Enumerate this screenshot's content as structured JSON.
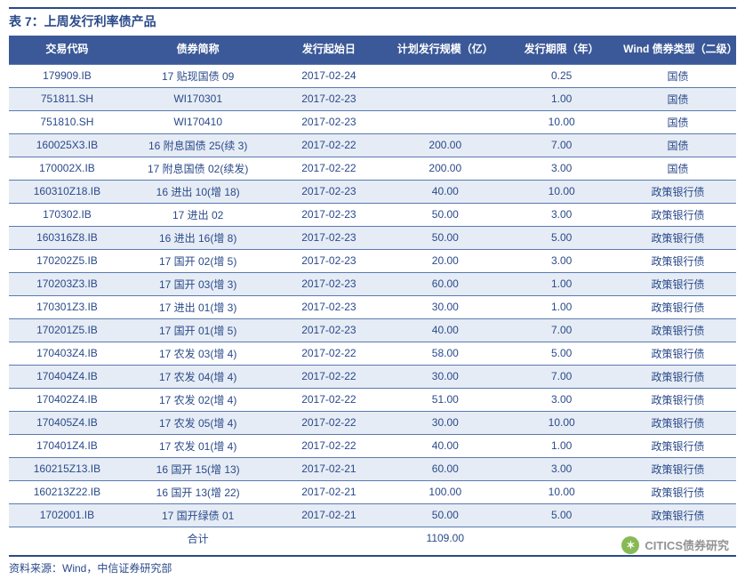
{
  "title": "表 7：上周发行利率债产品",
  "source": "资料来源：Wind，中信证券研究部",
  "watermark": "CITICS债券研究",
  "columns": [
    "交易代码",
    "债券简称",
    "发行起始日",
    "计划发行规模（亿）",
    "发行期限（年）",
    "Wind 债券类型（二级）"
  ],
  "col_widths": [
    "16%",
    "20%",
    "16%",
    "16%",
    "16%",
    "16%"
  ],
  "rows": [
    [
      "179909.IB",
      "17 贴现国债 09",
      "2017-02-24",
      "",
      "0.25",
      "国债"
    ],
    [
      "751811.SH",
      "WI170301",
      "2017-02-23",
      "",
      "1.00",
      "国债"
    ],
    [
      "751810.SH",
      "WI170410",
      "2017-02-23",
      "",
      "10.00",
      "国债"
    ],
    [
      "160025X3.IB",
      "16 附息国债 25(续 3)",
      "2017-02-22",
      "200.00",
      "7.00",
      "国债"
    ],
    [
      "170002X.IB",
      "17 附息国债 02(续发)",
      "2017-02-22",
      "200.00",
      "3.00",
      "国债"
    ],
    [
      "160310Z18.IB",
      "16 进出 10(增 18)",
      "2017-02-23",
      "40.00",
      "10.00",
      "政策银行债"
    ],
    [
      "170302.IB",
      "17 进出 02",
      "2017-02-23",
      "50.00",
      "3.00",
      "政策银行债"
    ],
    [
      "160316Z8.IB",
      "16 进出 16(增 8)",
      "2017-02-23",
      "50.00",
      "5.00",
      "政策银行债"
    ],
    [
      "170202Z5.IB",
      "17 国开 02(增 5)",
      "2017-02-23",
      "20.00",
      "3.00",
      "政策银行债"
    ],
    [
      "170203Z3.IB",
      "17 国开 03(增 3)",
      "2017-02-23",
      "60.00",
      "1.00",
      "政策银行债"
    ],
    [
      "170301Z3.IB",
      "17 进出 01(增 3)",
      "2017-02-23",
      "30.00",
      "1.00",
      "政策银行债"
    ],
    [
      "170201Z5.IB",
      "17 国开 01(增 5)",
      "2017-02-23",
      "40.00",
      "7.00",
      "政策银行债"
    ],
    [
      "170403Z4.IB",
      "17 农发 03(增 4)",
      "2017-02-22",
      "58.00",
      "5.00",
      "政策银行债"
    ],
    [
      "170404Z4.IB",
      "17 农发 04(增 4)",
      "2017-02-22",
      "30.00",
      "7.00",
      "政策银行债"
    ],
    [
      "170402Z4.IB",
      "17 农发 02(增 4)",
      "2017-02-22",
      "51.00",
      "3.00",
      "政策银行债"
    ],
    [
      "170405Z4.IB",
      "17 农发 05(增 4)",
      "2017-02-22",
      "30.00",
      "10.00",
      "政策银行债"
    ],
    [
      "170401Z4.IB",
      "17 农发 01(增 4)",
      "2017-02-22",
      "40.00",
      "1.00",
      "政策银行债"
    ],
    [
      "160215Z13.IB",
      "16 国开 15(增 13)",
      "2017-02-21",
      "60.00",
      "3.00",
      "政策银行债"
    ],
    [
      "160213Z22.IB",
      "16 国开 13(增 22)",
      "2017-02-21",
      "100.00",
      "10.00",
      "政策银行债"
    ],
    [
      "1702001.IB",
      "17 国开绿债 01",
      "2017-02-21",
      "50.00",
      "5.00",
      "政策银行债"
    ]
  ],
  "total_row": [
    "",
    "合计",
    "",
    "1109.00",
    "",
    ""
  ],
  "colors": {
    "header_bg": "#3b5998",
    "header_text": "#ffffff",
    "cell_text": "#2a4a8a",
    "alt_bg": "#e6ecf5",
    "border": "#5a7ab0",
    "title_color": "#2a4a8a"
  }
}
